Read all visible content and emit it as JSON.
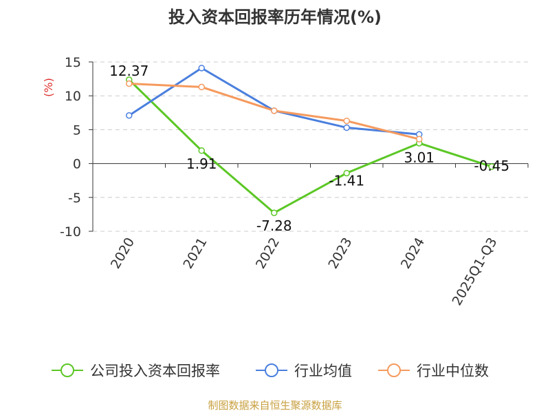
{
  "chart_data": {
    "type": "line",
    "title": "投入资本回报率历年情况(%)",
    "ylabel": "(%)",
    "categories": [
      "2020",
      "2021",
      "2022",
      "2023",
      "2024",
      "2025Q1-Q3"
    ],
    "ylim": [
      -10,
      15
    ],
    "yticks": [
      15,
      10,
      5,
      0,
      -5,
      -10
    ],
    "grid": true,
    "legend_position": "bottom",
    "series": [
      {
        "name": "公司投入资本回报率",
        "color": "#5bc725",
        "values": [
          12.37,
          1.91,
          -7.28,
          -1.41,
          3.01,
          -0.45
        ],
        "labels": [
          "12.37",
          "1.91",
          "-7.28",
          "-1.41",
          "3.01",
          "-0.45"
        ]
      },
      {
        "name": "行业均值",
        "color": "#4a7fde",
        "values": [
          7.1,
          14.1,
          7.8,
          5.3,
          4.3,
          null
        ]
      },
      {
        "name": "行业中位数",
        "color": "#f59a5e",
        "values": [
          11.8,
          11.3,
          7.8,
          6.3,
          3.6,
          null
        ]
      }
    ],
    "source": "制图数据来自恒生聚源数据库"
  }
}
